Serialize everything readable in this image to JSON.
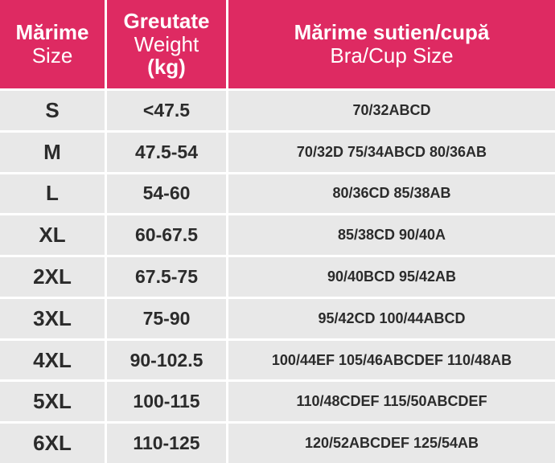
{
  "header": [
    [
      "Mărime",
      "Size"
    ],
    [
      "Greutate",
      "Weight",
      "(kg)"
    ],
    [
      "Mărime sutien/cupă",
      "Bra/Cup Size"
    ]
  ],
  "rows": [
    [
      "S",
      "<47.5",
      "70/32ABCD"
    ],
    [
      "M",
      "47.5-54",
      "70/32D 75/34ABCD 80/36AB"
    ],
    [
      "L",
      "54-60",
      "80/36CD 85/38AB"
    ],
    [
      "XL",
      "60-67.5",
      "85/38CD 90/40A"
    ],
    [
      "2XL",
      "67.5-75",
      "90/40BCD 95/42AB"
    ],
    [
      "3XL",
      "75-90",
      "95/42CD 100/44ABCD"
    ],
    [
      "4XL",
      "90-102.5",
      "100/44EF 105/46ABCDEF 110/48AB"
    ],
    [
      "5XL",
      "100-115",
      "110/48CDEF 115/50ABCDEF"
    ],
    [
      "6XL",
      "110-125",
      "120/52ABCDEF 125/54AB"
    ]
  ]
}
